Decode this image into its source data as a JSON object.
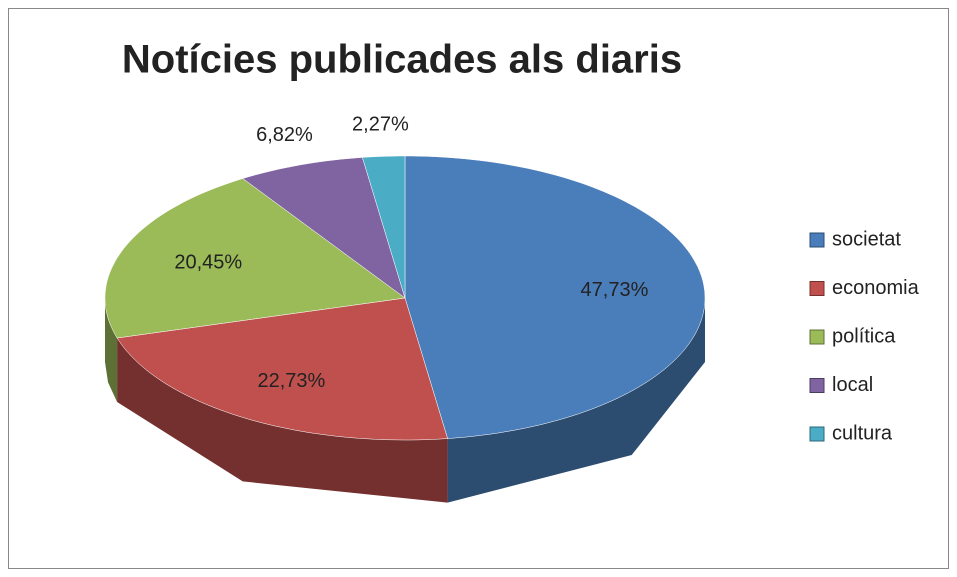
{
  "chart_data": {
    "type": "pie",
    "title": "Notícies publicades als diaris",
    "categories": [
      "societat",
      "economia",
      "política",
      "local",
      "cultura"
    ],
    "values": [
      47.73,
      22.73,
      20.45,
      6.82,
      2.27
    ],
    "value_labels": [
      "47,73%",
      "22,73%",
      "20,45%",
      "6,82%",
      "2,27%"
    ],
    "colors": [
      "#4a7ebb",
      "#c0504d",
      "#9bbb59",
      "#8064a2",
      "#4bacc6"
    ],
    "legend": "right"
  }
}
